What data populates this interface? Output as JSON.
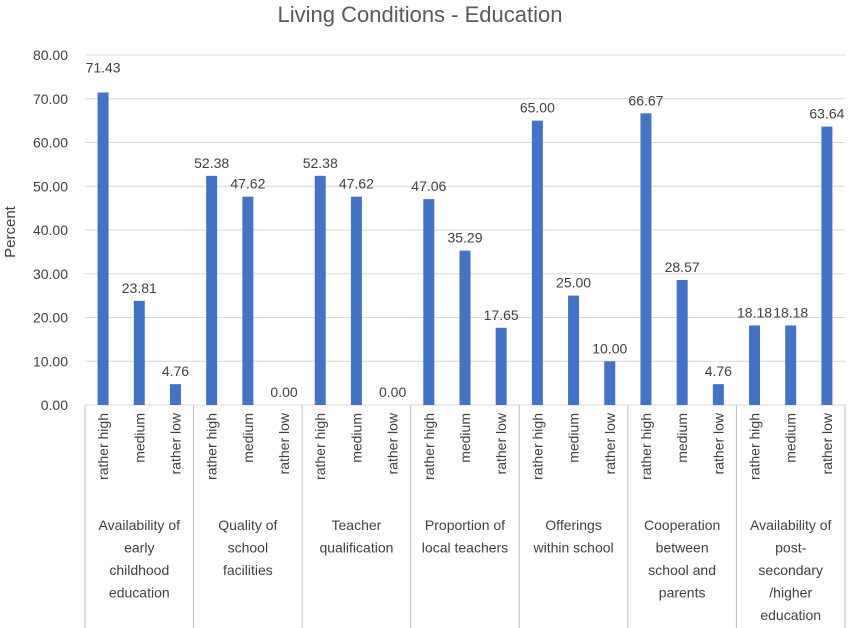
{
  "chart_data": {
    "type": "bar",
    "title": "Living Conditions - Education",
    "ylabel": "Percent",
    "xlabel": "",
    "ylim": [
      0,
      80
    ],
    "yticks": [
      "0.00",
      "10.00",
      "20.00",
      "30.00",
      "40.00",
      "50.00",
      "60.00",
      "70.00",
      "80.00"
    ],
    "grid": true,
    "legend": "none",
    "bar_color": "#4472c4",
    "groups": [
      {
        "label": [
          "Availability of",
          "early",
          "childhood",
          "education"
        ],
        "bars": [
          {
            "category": "rather high",
            "value": 71.43,
            "label": "71.43"
          },
          {
            "category": "medium",
            "value": 23.81,
            "label": "23.81"
          },
          {
            "category": "rather low",
            "value": 4.76,
            "label": "4.76"
          }
        ]
      },
      {
        "label": [
          "Quality of",
          "school",
          "facilities"
        ],
        "bars": [
          {
            "category": "rather high",
            "value": 52.38,
            "label": "52.38"
          },
          {
            "category": "medium",
            "value": 47.62,
            "label": "47.62"
          },
          {
            "category": "rather low",
            "value": 0,
            "label": "0.00"
          }
        ]
      },
      {
        "label": [
          "Teacher",
          "qualification"
        ],
        "bars": [
          {
            "category": "rather high",
            "value": 52.38,
            "label": "52.38"
          },
          {
            "category": "medium",
            "value": 47.62,
            "label": "47.62"
          },
          {
            "category": "rather low",
            "value": 0,
            "label": "0.00"
          }
        ]
      },
      {
        "label": [
          "Proportion of",
          "local teachers"
        ],
        "bars": [
          {
            "category": "rather high",
            "value": 47.06,
            "label": "47.06"
          },
          {
            "category": "medium",
            "value": 35.29,
            "label": "35.29"
          },
          {
            "category": "rather low",
            "value": 17.65,
            "label": "17.65"
          }
        ]
      },
      {
        "label": [
          "Offerings",
          "within school"
        ],
        "bars": [
          {
            "category": "rather high",
            "value": 65.0,
            "label": "65.00"
          },
          {
            "category": "medium",
            "value": 25.0,
            "label": "25.00"
          },
          {
            "category": "rather low",
            "value": 10.0,
            "label": "10.00"
          }
        ]
      },
      {
        "label": [
          "Cooperation",
          "between",
          "school and",
          "parents"
        ],
        "bars": [
          {
            "category": "rather high",
            "value": 66.67,
            "label": "66.67"
          },
          {
            "category": "medium",
            "value": 28.57,
            "label": "28.57"
          },
          {
            "category": "rather low",
            "value": 4.76,
            "label": "4.76"
          }
        ]
      },
      {
        "label": [
          "Availability of",
          "post-",
          "secondary",
          "/higher",
          "education"
        ],
        "bars": [
          {
            "category": "rather high",
            "value": 18.18,
            "label": "18.18"
          },
          {
            "category": "medium",
            "value": 18.18,
            "label": "18.18"
          },
          {
            "category": "rather low",
            "value": 63.64,
            "label": "63.64"
          }
        ]
      }
    ]
  }
}
